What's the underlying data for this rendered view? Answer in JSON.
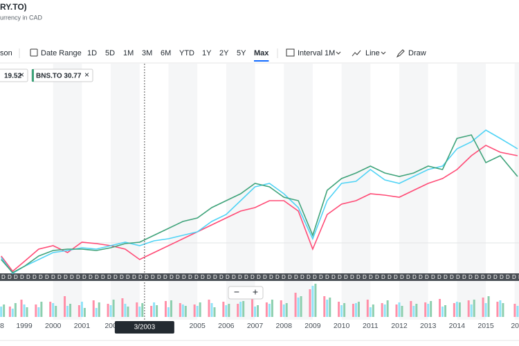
{
  "header": {
    "title": "RY.TO)",
    "subtitle": "urrency in CAD"
  },
  "toolbar": {
    "compare": "son",
    "date_range": "Date Range",
    "ranges": [
      "1D",
      "5D",
      "1M",
      "3M",
      "6M",
      "YTD",
      "1Y",
      "2Y",
      "5Y",
      "Max"
    ],
    "active_range": "Max",
    "interval_label": "Interval",
    "interval": "1M",
    "chart_style": "Line",
    "draw": "Draw"
  },
  "legend_chips": [
    {
      "label": "19.52",
      "color": "#ff4a75"
    },
    {
      "label": "BNS.TO 30.77",
      "color": "#3fa37a"
    }
  ],
  "close_icon": "×",
  "chart": {
    "type": "line",
    "x": [
      1998.2,
      1998.6,
      1999,
      1999.5,
      2000,
      2000.5,
      2001,
      2001.5,
      2002,
      2002.5,
      2003,
      2003.5,
      2004,
      2004.5,
      2005,
      2005.5,
      2006,
      2006.5,
      2007,
      2007.5,
      2008,
      2008.5,
      2009,
      2009.5,
      2010,
      2010.5,
      2011,
      2011.5,
      2012,
      2012.5,
      2013,
      2013.5,
      2014,
      2014.5,
      2015,
      2015.5,
      2016.1
    ],
    "xlim": [
      1998.16,
      2016.15
    ],
    "ylim": [
      0,
      300
    ],
    "xticks": [
      {
        "value": 1998,
        "label": "8"
      },
      1999,
      2000,
      2001,
      {
        "value": 2002,
        "label": "200"
      },
      2005,
      2006,
      2007,
      2008,
      2009,
      2010,
      2011,
      2012,
      2013,
      2014,
      2015,
      {
        "value": 2016,
        "label": "20"
      }
    ],
    "series": [
      {
        "color": "#ff4a75",
        "values": [
          25,
          3,
          17,
          35,
          40,
          30,
          45,
          43,
          40,
          35,
          20,
          30,
          40,
          50,
          60,
          70,
          80,
          90,
          95,
          105,
          105,
          90,
          35,
          85,
          100,
          105,
          115,
          113,
          110,
          120,
          130,
          137,
          150,
          170,
          185,
          175,
          170
        ]
      },
      {
        "color": "#4fd3f5",
        "values": [
          23,
          0,
          10,
          20,
          30,
          33,
          37,
          35,
          40,
          45,
          40,
          47,
          50,
          55,
          60,
          75,
          85,
          105,
          125,
          130,
          115,
          95,
          50,
          105,
          130,
          133,
          150,
          135,
          130,
          140,
          150,
          155,
          180,
          190,
          207,
          195,
          180
        ]
      },
      {
        "color": "#3fa37a",
        "values": [
          20,
          1,
          10,
          25,
          33,
          35,
          35,
          33,
          37,
          43,
          45,
          55,
          65,
          75,
          80,
          95,
          105,
          115,
          130,
          125,
          110,
          105,
          55,
          120,
          137,
          145,
          155,
          145,
          140,
          145,
          155,
          150,
          195,
          200,
          160,
          170,
          140
        ]
      }
    ],
    "crosshair": {
      "value": 2003.17,
      "label": "3/2003"
    },
    "dividend_marker": "D",
    "zoom": [
      "−",
      "+"
    ],
    "volume": {
      "ylim": [
        0,
        50
      ],
      "series": [
        {
          "color": "#ff8fa8",
          "values": [
            20,
            15,
            25,
            18,
            22,
            30,
            17,
            24,
            19,
            27,
            21,
            16,
            23,
            20,
            18,
            25,
            22,
            19,
            26,
            21,
            24,
            35,
            40,
            30,
            22,
            19,
            25,
            20,
            18,
            23,
            21,
            26,
            20,
            24,
            28,
            22,
            19
          ]
        },
        {
          "color": "#8fe3f8",
          "values": [
            15,
            12,
            18,
            14,
            20,
            16,
            22,
            13,
            17,
            19,
            15,
            21,
            14,
            18,
            16,
            20,
            17,
            22,
            15,
            19,
            18,
            28,
            45,
            25,
            17,
            20,
            14,
            18,
            21,
            16,
            19,
            15,
            22,
            18,
            20,
            24,
            16
          ]
        },
        {
          "color": "#8ccfae",
          "values": [
            18,
            20,
            14,
            22,
            16,
            19,
            13,
            21,
            25,
            15,
            20,
            17,
            24,
            16,
            21,
            14,
            19,
            23,
            17,
            25,
            20,
            30,
            48,
            28,
            20,
            22,
            18,
            24,
            16,
            19,
            23,
            17,
            21,
            25,
            30,
            20,
            22
          ]
        }
      ]
    }
  }
}
